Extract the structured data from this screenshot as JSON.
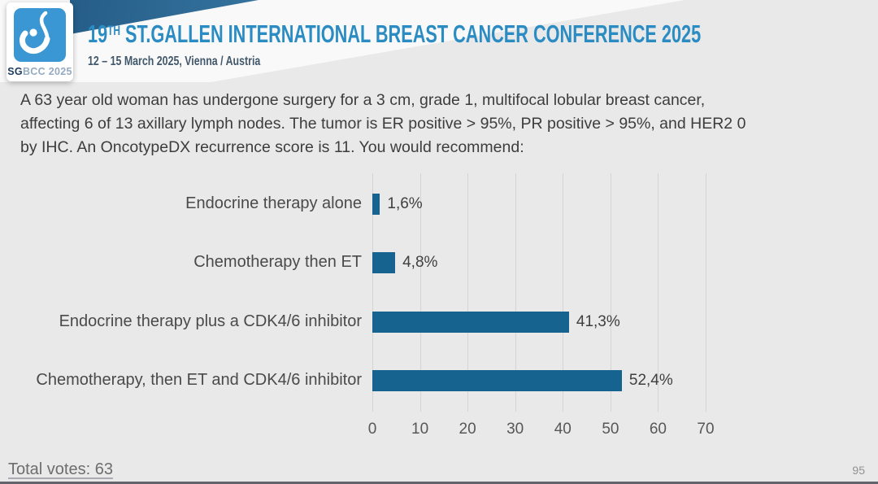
{
  "header": {
    "logo": {
      "sg": "SG",
      "bcc": "BCC",
      "year": "2025"
    },
    "title_num": "19",
    "title_sup": "TH",
    "title_rest": " ST.GALLEN INTERNATIONAL BREAST CANCER CONFERENCE 2025",
    "subtitle": "12 – 15 March 2025, Vienna / Austria"
  },
  "question": {
    "lines": [
      "A 63 year old woman has undergone surgery for a 3 cm, grade 1, multifocal lobular breast cancer,",
      "affecting 6 of 13 axillary lymph nodes. The tumor is ER positive > 95%, PR positive > 95%, and HER2 0",
      "by IHC. An OncotypeDX recurrence score is 11. You would recommend:"
    ]
  },
  "chart_data": {
    "type": "bar",
    "orientation": "horizontal",
    "title": "",
    "categories": [
      "Endocrine therapy alone",
      "Chemotherapy then ET",
      "Endocrine therapy plus a CDK4/6 inhibitor",
      "Chemotherapy, then ET and CDK4/6 inhibitor"
    ],
    "values": [
      1.6,
      4.8,
      41.3,
      52.4
    ],
    "value_labels": [
      "1,6%",
      "4,8%",
      "41,3%",
      "52,4%"
    ],
    "x_ticks": [
      0,
      10,
      20,
      30,
      40,
      50,
      60,
      70
    ],
    "xlim": [
      0,
      72
    ],
    "xlabel": "",
    "ylabel": "",
    "grid": true,
    "legend": false,
    "bar_color": "#176390",
    "gridline_color": "#d4d4d4"
  },
  "footer": {
    "total_votes": "Total votes: 63",
    "page_number": "95"
  },
  "colors": {
    "background": "#e9e9e9",
    "title_blue": "#2b8cc4",
    "subtitle_navy": "#42586b",
    "logo_blue": "#3b97d3",
    "header_wedge_navy": "#2d6a95"
  }
}
